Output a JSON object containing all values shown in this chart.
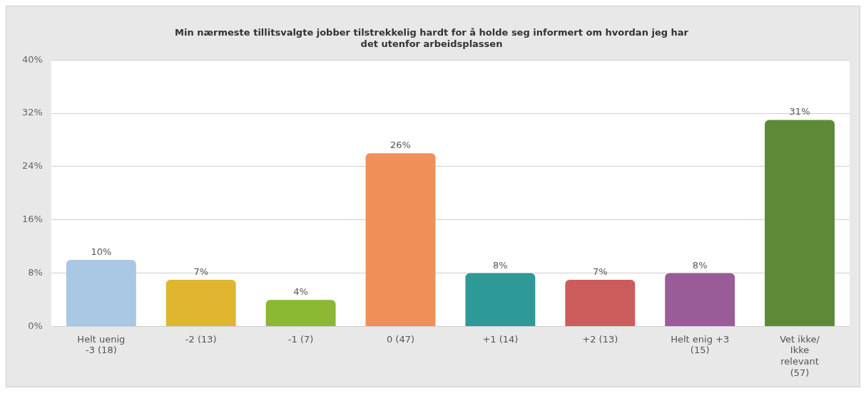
{
  "chart_data": {
    "type": "bar",
    "title": "Min nærmeste tillitsvalgte jobber tilstrekkelig hardt for å holde seg informert om hvordan jeg har det utenfor arbeidsplassen",
    "categories": [
      "Helt uenig -3 (18)",
      "-2 (13)",
      "-1 (7)",
      "0 (47)",
      "+1 (14)",
      "+2 (13)",
      "Helt enig +3 (15)",
      "Vet ikke/Ikke relevant (57)"
    ],
    "values": [
      10,
      7,
      4,
      26,
      8,
      7,
      8,
      31
    ],
    "colors": [
      "#a8c8e4",
      "#e0b530",
      "#8ab832",
      "#f09058",
      "#2e9a98",
      "#cc5c5c",
      "#9a5c98",
      "#5e8a38"
    ],
    "value_labels": [
      "10%",
      "7%",
      "4%",
      "26%",
      "8%",
      "7%",
      "8%",
      "31%"
    ],
    "ylim": [
      0,
      40
    ],
    "yticks": [
      {
        "value": 0,
        "label": "0%"
      },
      {
        "value": 8,
        "label": "8%"
      },
      {
        "value": 16,
        "label": "16%"
      },
      {
        "value": 24,
        "label": "24%"
      },
      {
        "value": 32,
        "label": "32%"
      },
      {
        "value": 40,
        "label": "40%"
      }
    ],
    "grid": "y",
    "legend": false
  }
}
